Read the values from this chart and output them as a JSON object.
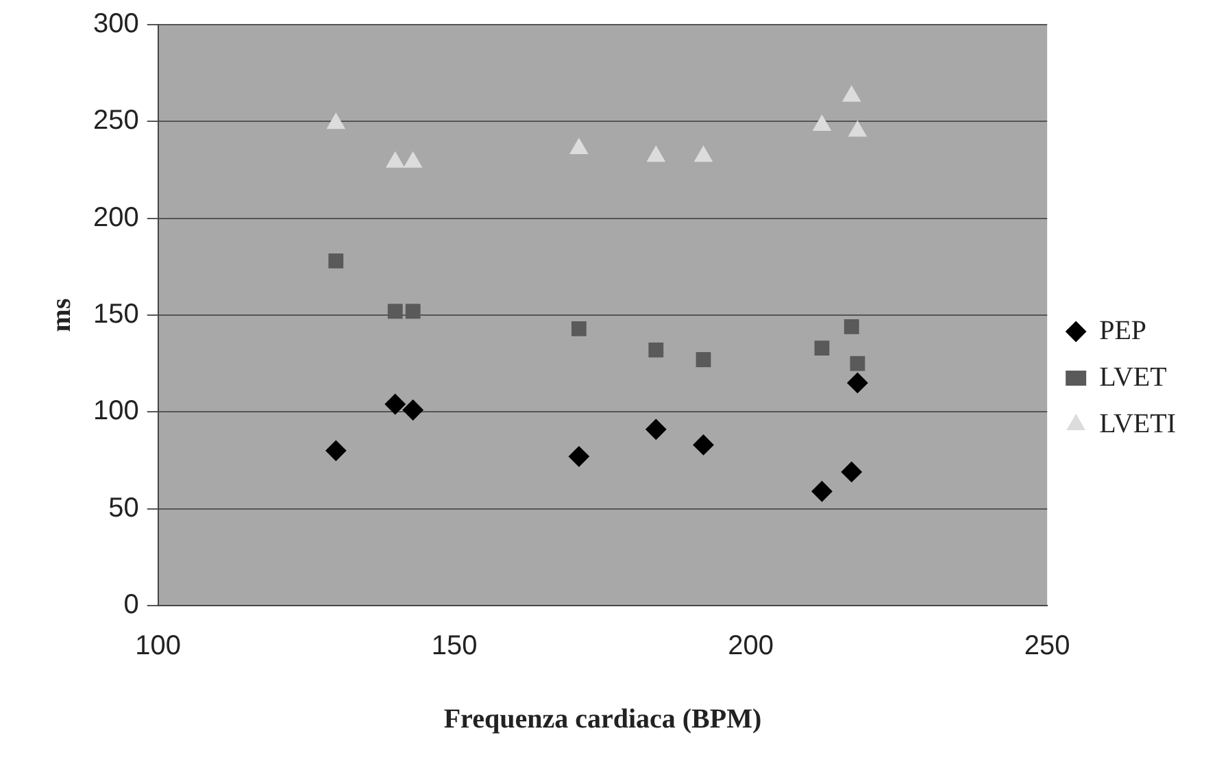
{
  "chart_data": {
    "type": "scatter",
    "xlabel": "Frequenza cardiaca (BPM)",
    "ylabel": "ms",
    "x": [
      130,
      140,
      143,
      171,
      184,
      192,
      212,
      217,
      218
    ],
    "series": [
      {
        "name": "PEP",
        "color": "#000000",
        "marker": "diamond",
        "values": [
          80,
          104,
          101,
          77,
          91,
          83,
          59,
          69,
          115
        ]
      },
      {
        "name": "LVET",
        "color": "#5a5a5a",
        "marker": "square",
        "values": [
          178,
          152,
          152,
          143,
          132,
          127,
          133,
          144,
          125
        ]
      },
      {
        "name": "LVETI",
        "color": "#dcdcdc",
        "marker": "triangle",
        "values": [
          249,
          229,
          229,
          236,
          232,
          232,
          248,
          263,
          245
        ]
      }
    ],
    "xlim": [
      100,
      250
    ],
    "xticks": [
      100,
      150,
      200,
      250
    ],
    "ylim": [
      0,
      300
    ],
    "yticks": [
      0,
      50,
      100,
      150,
      200,
      250,
      300
    ],
    "grid": "y",
    "legend": "right"
  }
}
